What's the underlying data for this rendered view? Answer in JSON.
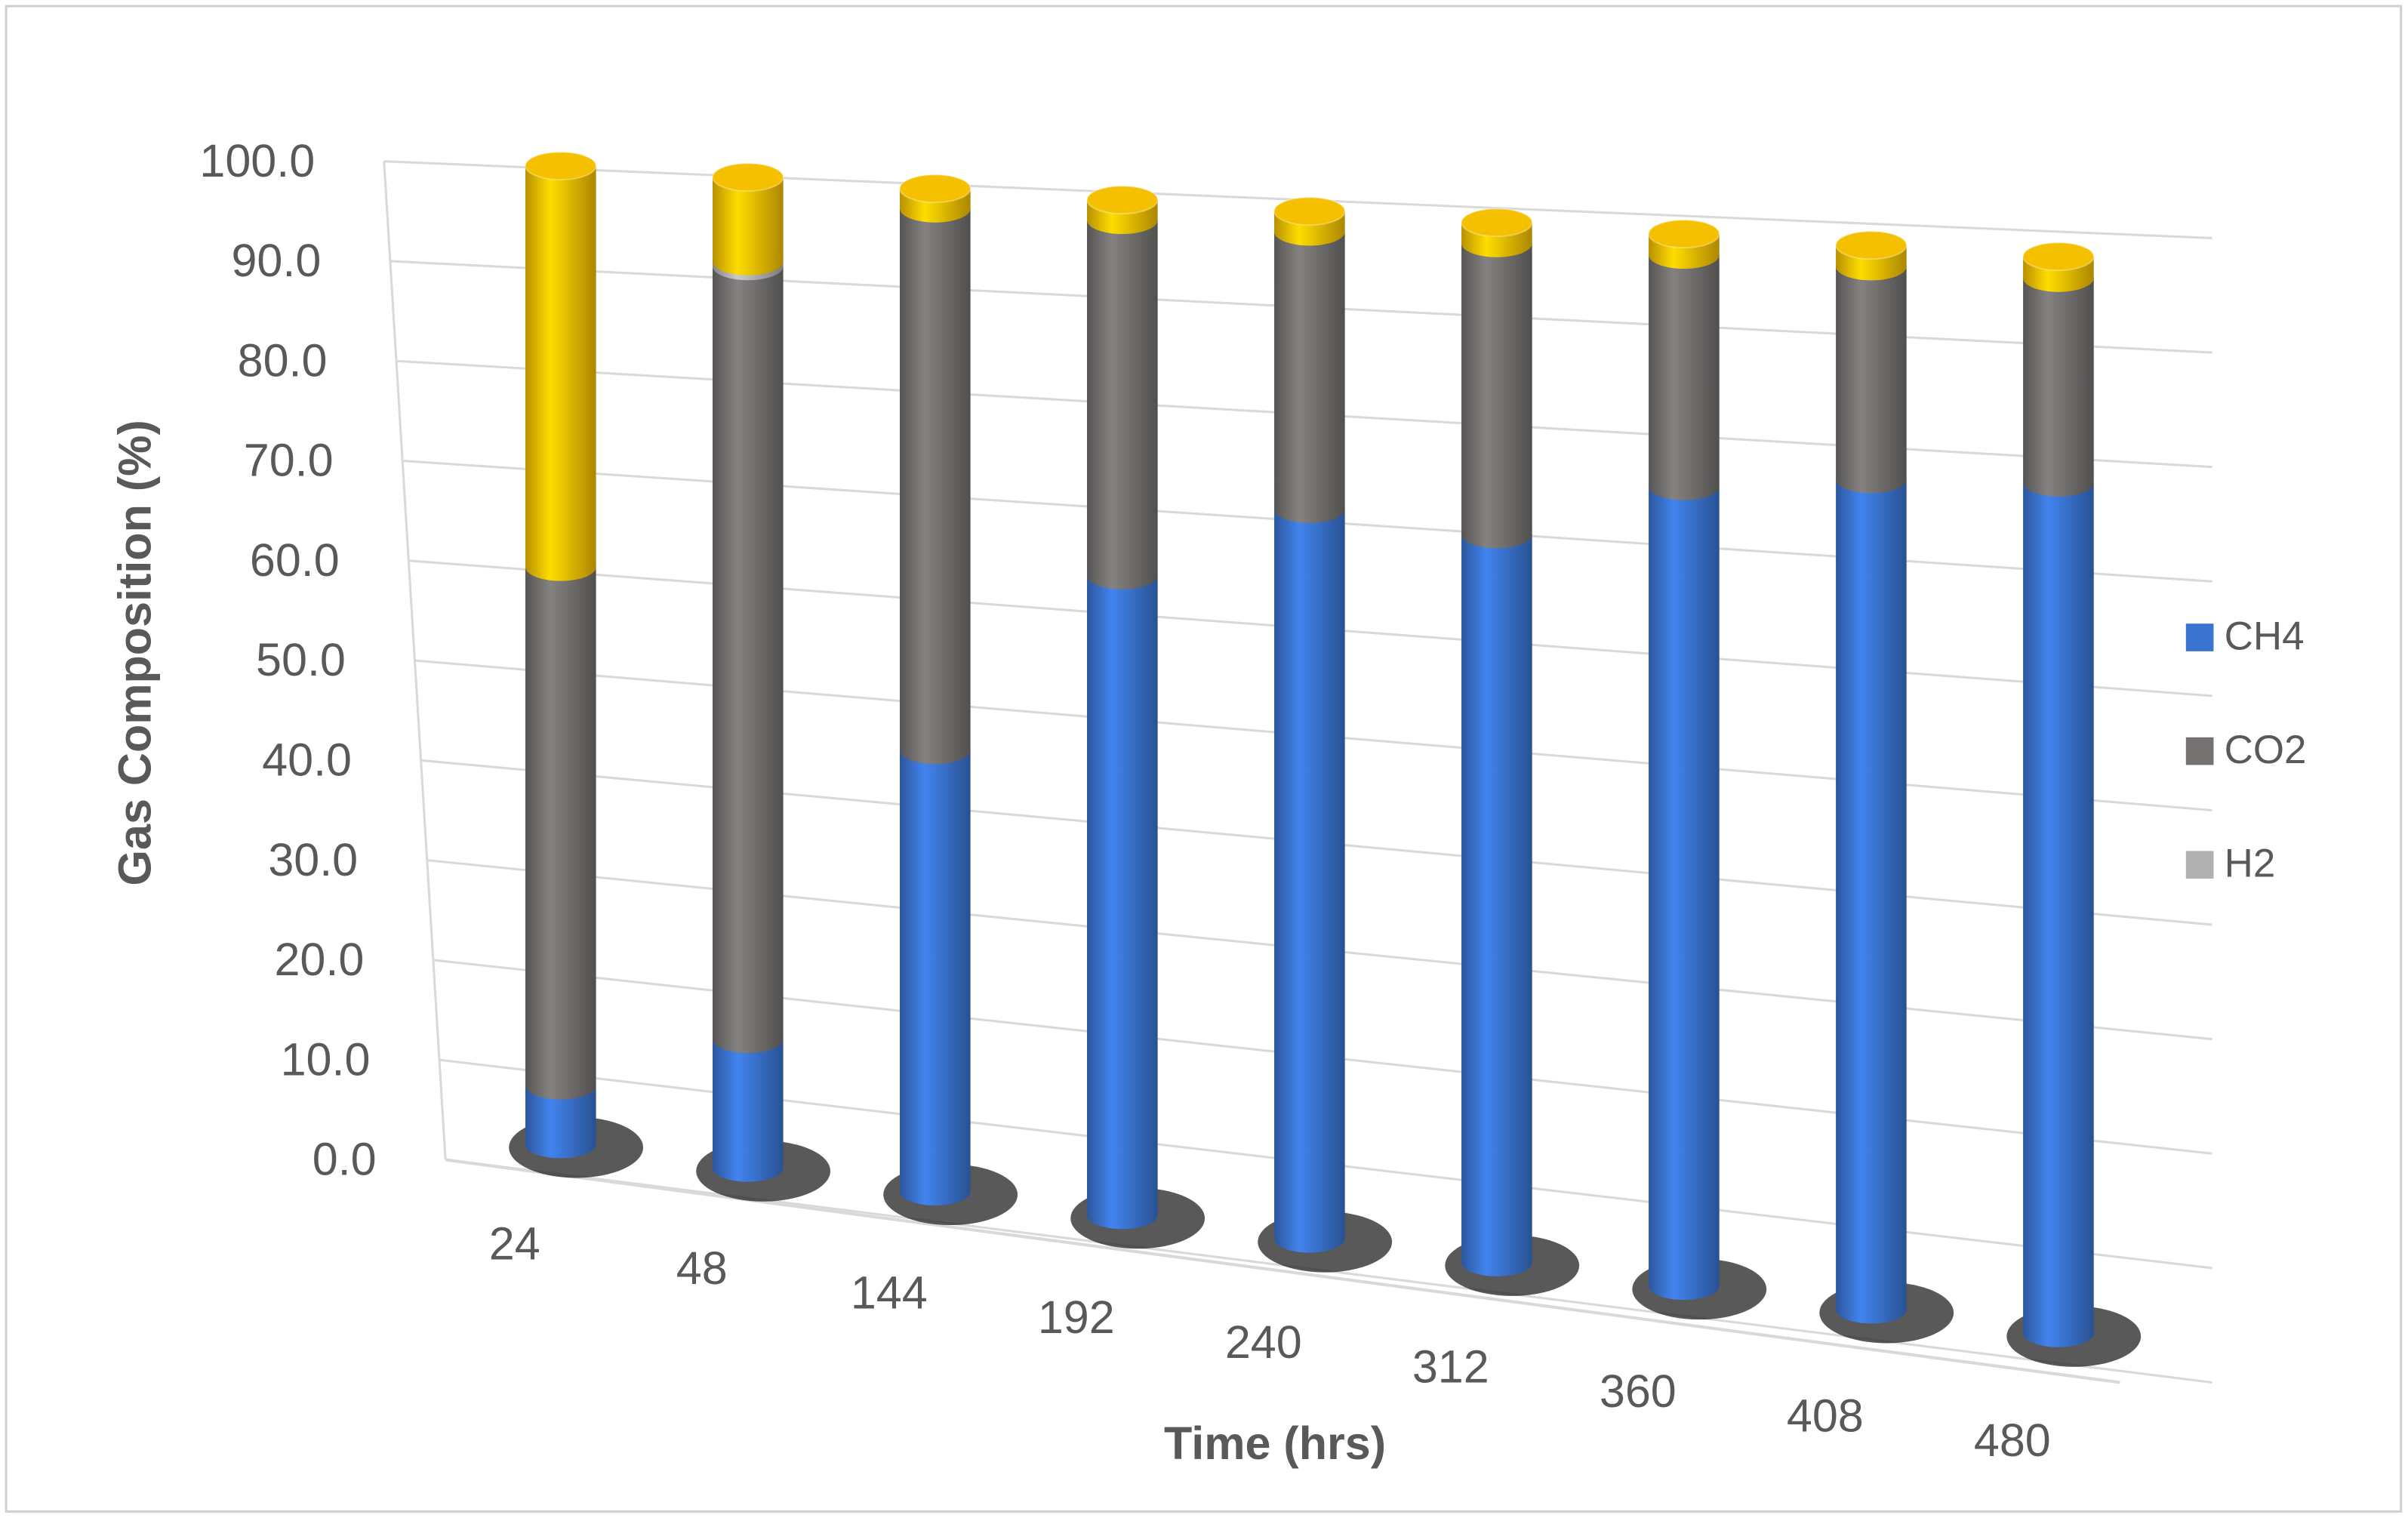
{
  "chart_data": {
    "type": "bar3d-stacked",
    "x_label": "Time (hrs)",
    "y_label": "Gas Composition (%)",
    "categories": [
      "24",
      "48",
      "144",
      "192",
      "240",
      "312",
      "360",
      "408",
      "480"
    ],
    "series": [
      {
        "name": "CH4",
        "color": "#3a73d0",
        "values": [
          6,
          13,
          44,
          63,
          71,
          70,
          76,
          78,
          79
        ]
      },
      {
        "name": "CO2",
        "color": "#747170",
        "values": [
          53,
          78,
          54,
          35,
          27,
          28,
          22,
          20,
          19
        ]
      },
      {
        "name": "H2",
        "color": "#b0b0b0",
        "values": [
          0,
          0.5,
          0,
          0,
          0,
          0,
          0,
          0,
          0
        ]
      },
      {
        "name": null,
        "color": "#f5c000",
        "values": [
          41,
          8.5,
          2,
          2,
          2,
          2,
          2,
          2,
          2
        ]
      }
    ],
    "ylim": [
      0,
      100
    ],
    "yticks": [
      {
        "value": 0,
        "label": "0.0"
      },
      {
        "value": 10,
        "label": "10.0"
      },
      {
        "value": 20,
        "label": "20.0"
      },
      {
        "value": 30,
        "label": "30.0"
      },
      {
        "value": 40,
        "label": "40.0"
      },
      {
        "value": 50,
        "label": "50.0"
      },
      {
        "value": 60,
        "label": "60.0"
      },
      {
        "value": 70,
        "label": "70.0"
      },
      {
        "value": 80,
        "label": "80.0"
      },
      {
        "value": 90,
        "label": "90.0"
      },
      {
        "value": 100,
        "label": "100.0"
      }
    ],
    "grid": true,
    "legend": "right"
  }
}
